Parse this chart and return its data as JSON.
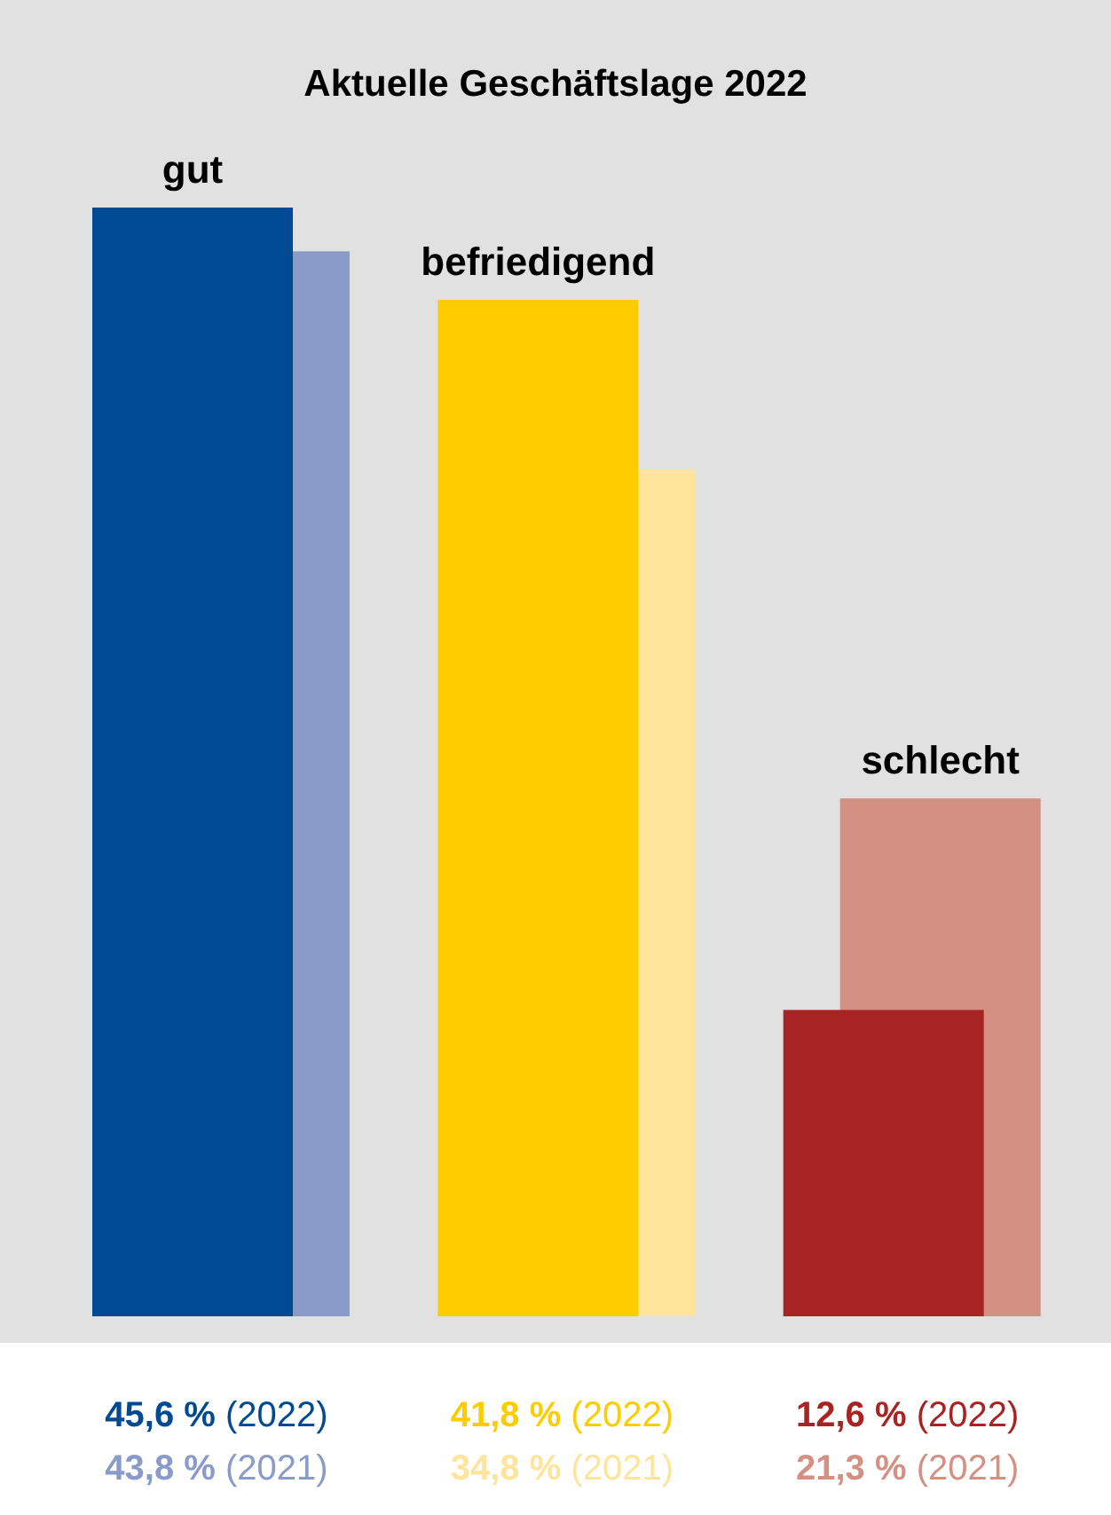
{
  "chart_data": {
    "type": "bar",
    "title": "Aktuelle Geschäftslage 2022",
    "categories": [
      "gut",
      "befriedigend",
      "schlecht"
    ],
    "series": [
      {
        "name": "(2022)",
        "colors": [
          "#004a93",
          "#ffcc00",
          "#a82423"
        ],
        "values": [
          45.6,
          41.8,
          12.6
        ],
        "value_labels": [
          "45,6 %",
          "41,8 %",
          "12,6 %"
        ]
      },
      {
        "name": "(2021)",
        "colors": [
          "#8a9bca",
          "#ffe49a",
          "#d49183"
        ],
        "values": [
          43.8,
          34.8,
          21.3
        ],
        "value_labels": [
          "43,8 %",
          "34,8 %",
          "21,3 %"
        ]
      }
    ]
  }
}
